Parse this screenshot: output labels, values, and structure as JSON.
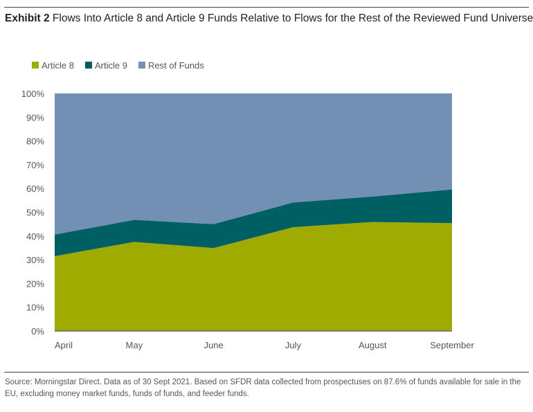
{
  "title": {
    "label": "Exhibit 2",
    "text": "Flows Into Article 8 and Article 9 Funds Relative to Flows for the Rest of the Reviewed Fund Universe"
  },
  "source": "Source: Morningstar Direct. Data as of 30 Sept 2021. Based on SFDR data collected from prospectuses on 87.6% of funds available for sale in the EU, excluding money market funds, funds of funds, and feeder funds.",
  "chart_data": {
    "type": "area",
    "stacked": true,
    "categories": [
      "April",
      "May",
      "June",
      "July",
      "August",
      "September"
    ],
    "series": [
      {
        "name": "Article 8",
        "color": "#9fab00",
        "values": [
          31.5,
          37.5,
          34.9,
          43.7,
          45.9,
          45.4
        ]
      },
      {
        "name": "Article 9",
        "color": "#005f63",
        "values": [
          9.1,
          9.3,
          10.1,
          10.4,
          10.7,
          14.2
        ]
      },
      {
        "name": "Rest of Funds",
        "color": "#728fb4",
        "values": [
          59.4,
          53.2,
          55.0,
          45.9,
          43.4,
          40.4
        ]
      }
    ],
    "ylim": [
      0,
      100
    ],
    "yticks": [
      "0%",
      "10%",
      "20%",
      "30%",
      "40%",
      "50%",
      "60%",
      "70%",
      "80%",
      "90%",
      "100%"
    ],
    "ylabel": "",
    "xlabel": "",
    "grid": true,
    "legend": "top-left"
  }
}
